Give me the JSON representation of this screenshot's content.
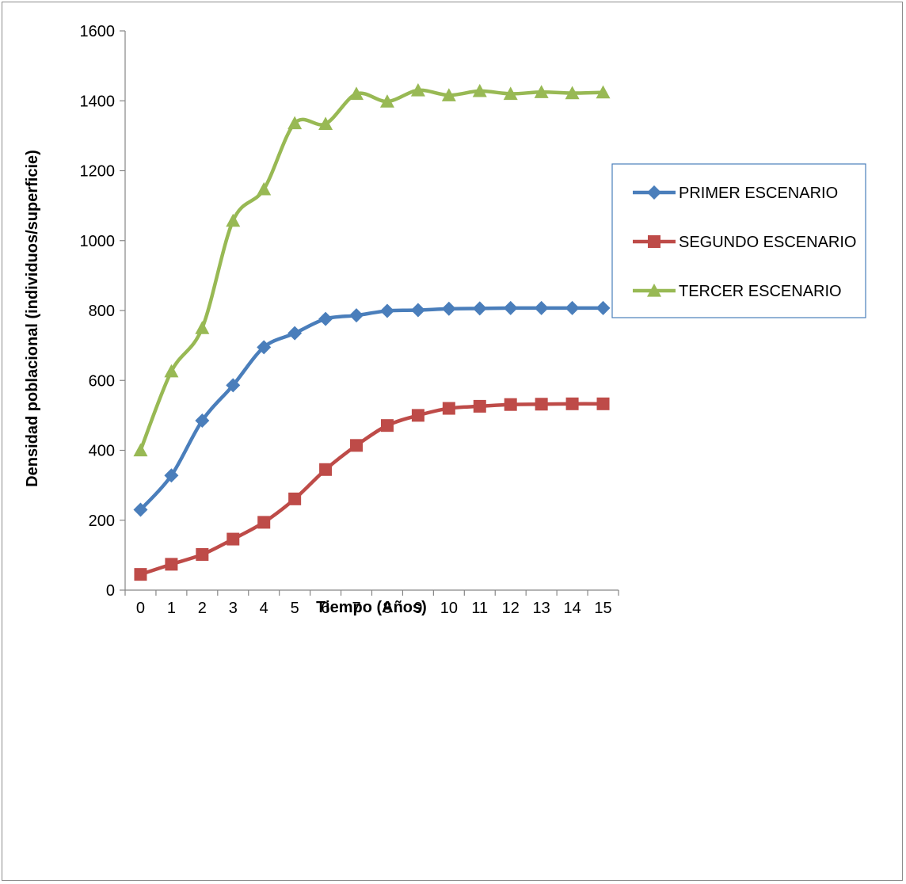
{
  "chart_data": {
    "type": "line",
    "title": "",
    "xlabel": "Tiempo (Años)",
    "ylabel": "Densidad poblacional (individuos/superficie)",
    "categories": [
      "0",
      "1",
      "2",
      "3",
      "4",
      "5",
      "6",
      "7",
      "8",
      "9",
      "10",
      "11",
      "12",
      "13",
      "14",
      "15"
    ],
    "ylim": [
      0,
      1600
    ],
    "yticks": [
      0,
      200,
      400,
      600,
      800,
      1000,
      1200,
      1400,
      1600
    ],
    "grid": false,
    "legend_position": "right",
    "series": [
      {
        "name": "PRIMER ESCENARIO",
        "color": "#4a7ebb",
        "marker": "diamond",
        "values": [
          230,
          328,
          485,
          586,
          695,
          735,
          776,
          786,
          799,
          801,
          805,
          806,
          807,
          807,
          807,
          807
        ]
      },
      {
        "name": "SEGUNDO ESCENARIO",
        "color": "#be4b48",
        "marker": "square",
        "values": [
          45,
          74,
          102,
          146,
          194,
          261,
          345,
          414,
          471,
          500,
          520,
          526,
          531,
          532,
          533,
          533
        ]
      },
      {
        "name": "TERCER ESCENARIO",
        "color": "#98b954",
        "marker": "triangle",
        "values": [
          400,
          626,
          750,
          1057,
          1147,
          1336,
          1334,
          1420,
          1398,
          1430,
          1416,
          1428,
          1420,
          1425,
          1422,
          1424
        ]
      }
    ]
  }
}
